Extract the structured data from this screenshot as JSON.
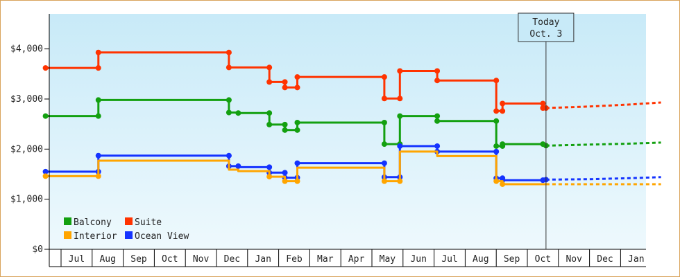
{
  "chart_data": {
    "type": "line",
    "title": "",
    "xlabel": "",
    "ylabel": "",
    "ylim": [
      0,
      4700
    ],
    "yticks": [
      {
        "value": 0,
        "label": "$0"
      },
      {
        "value": 1000,
        "label": "$1,000"
      },
      {
        "value": 2000,
        "label": "$2,000"
      },
      {
        "value": 3000,
        "label": "$3,000"
      },
      {
        "value": 4000,
        "label": "$4,000"
      }
    ],
    "xlim": [
      -1.3,
      18.8
    ],
    "months": [
      "Jul",
      "Aug",
      "Sep",
      "Oct",
      "Nov",
      "Dec",
      "Jan",
      "Feb",
      "Mar",
      "Apr",
      "May",
      "Jun",
      "Jul",
      "Aug",
      "Sep",
      "Oct",
      "Nov",
      "Dec",
      "Jan"
    ],
    "today": {
      "line1": "Today",
      "line2": "Oct. 3",
      "x": 15.1
    },
    "grid": false,
    "background": {
      "top": "#c8eaf8",
      "bottom": "#eef9fd"
    },
    "legend": {
      "position": "bottom-left"
    },
    "series": [
      {
        "name": "Suite",
        "color": "#ff3300",
        "points": [
          [
            -1.0,
            3620
          ],
          [
            0.7,
            3620
          ],
          [
            0.7,
            3930
          ],
          [
            4.9,
            3930
          ],
          [
            4.9,
            3630
          ],
          [
            6.2,
            3630
          ],
          [
            6.2,
            3340
          ],
          [
            6.7,
            3340
          ],
          [
            6.7,
            3230
          ],
          [
            7.1,
            3230
          ],
          [
            7.1,
            3440
          ],
          [
            9.9,
            3440
          ],
          [
            9.9,
            3010
          ],
          [
            10.4,
            3010
          ],
          [
            10.4,
            3560
          ],
          [
            11.6,
            3560
          ],
          [
            11.6,
            3370
          ],
          [
            13.5,
            3370
          ],
          [
            13.5,
            2760
          ],
          [
            13.7,
            2760
          ],
          [
            13.7,
            2910
          ],
          [
            15.0,
            2910
          ],
          [
            15.0,
            2820
          ],
          [
            15.1,
            2820
          ]
        ],
        "markers": [
          [
            -1.0,
            3620
          ],
          [
            0.7,
            3620
          ],
          [
            0.7,
            3930
          ],
          [
            4.9,
            3930
          ],
          [
            4.9,
            3630
          ],
          [
            6.2,
            3630
          ],
          [
            6.2,
            3340
          ],
          [
            6.7,
            3340
          ],
          [
            6.7,
            3230
          ],
          [
            7.1,
            3230
          ],
          [
            7.1,
            3440
          ],
          [
            9.9,
            3440
          ],
          [
            9.9,
            3010
          ],
          [
            10.4,
            3010
          ],
          [
            10.4,
            3560
          ],
          [
            11.6,
            3560
          ],
          [
            11.6,
            3370
          ],
          [
            13.5,
            3370
          ],
          [
            13.5,
            2760
          ],
          [
            13.7,
            2760
          ],
          [
            13.7,
            2910
          ],
          [
            15.0,
            2910
          ],
          [
            15.0,
            2820
          ],
          [
            15.1,
            2820
          ]
        ],
        "forecast": [
          [
            15.1,
            2820
          ],
          [
            16.5,
            2850
          ],
          [
            17.8,
            2890
          ],
          [
            18.8,
            2930
          ]
        ]
      },
      {
        "name": "Balcony",
        "color": "#13a010",
        "points": [
          [
            -1.0,
            2660
          ],
          [
            0.7,
            2660
          ],
          [
            0.7,
            2980
          ],
          [
            4.9,
            2980
          ],
          [
            4.9,
            2730
          ],
          [
            5.2,
            2730
          ],
          [
            5.2,
            2720
          ],
          [
            6.2,
            2720
          ],
          [
            6.2,
            2490
          ],
          [
            6.7,
            2490
          ],
          [
            6.7,
            2380
          ],
          [
            7.1,
            2380
          ],
          [
            7.1,
            2530
          ],
          [
            9.9,
            2530
          ],
          [
            9.9,
            2100
          ],
          [
            10.4,
            2100
          ],
          [
            10.4,
            2660
          ],
          [
            11.6,
            2660
          ],
          [
            11.6,
            2560
          ],
          [
            13.5,
            2560
          ],
          [
            13.5,
            2060
          ],
          [
            13.7,
            2060
          ],
          [
            13.7,
            2100
          ],
          [
            15.0,
            2100
          ],
          [
            15.0,
            2070
          ],
          [
            15.1,
            2070
          ]
        ],
        "markers": [
          [
            -1.0,
            2660
          ],
          [
            0.7,
            2660
          ],
          [
            0.7,
            2980
          ],
          [
            4.9,
            2980
          ],
          [
            4.9,
            2730
          ],
          [
            5.2,
            2720
          ],
          [
            6.2,
            2720
          ],
          [
            6.2,
            2490
          ],
          [
            6.7,
            2490
          ],
          [
            6.7,
            2380
          ],
          [
            7.1,
            2380
          ],
          [
            7.1,
            2530
          ],
          [
            9.9,
            2530
          ],
          [
            9.9,
            2100
          ],
          [
            10.4,
            2100
          ],
          [
            10.4,
            2660
          ],
          [
            11.6,
            2660
          ],
          [
            11.6,
            2560
          ],
          [
            13.5,
            2560
          ],
          [
            13.5,
            2060
          ],
          [
            13.7,
            2060
          ],
          [
            13.7,
            2100
          ],
          [
            15.0,
            2100
          ],
          [
            15.1,
            2070
          ]
        ],
        "forecast": [
          [
            15.1,
            2070
          ],
          [
            16.5,
            2090
          ],
          [
            17.8,
            2110
          ],
          [
            18.8,
            2130
          ]
        ]
      },
      {
        "name": "Ocean View",
        "color": "#1433ff",
        "points": [
          [
            -1.0,
            1550
          ],
          [
            0.7,
            1550
          ],
          [
            0.7,
            1870
          ],
          [
            4.9,
            1870
          ],
          [
            4.9,
            1660
          ],
          [
            5.2,
            1660
          ],
          [
            5.2,
            1640
          ],
          [
            6.2,
            1640
          ],
          [
            6.2,
            1530
          ],
          [
            6.7,
            1530
          ],
          [
            6.7,
            1430
          ],
          [
            7.1,
            1430
          ],
          [
            7.1,
            1720
          ],
          [
            9.9,
            1720
          ],
          [
            9.9,
            1440
          ],
          [
            10.4,
            1440
          ],
          [
            10.4,
            2060
          ],
          [
            11.6,
            2060
          ],
          [
            11.6,
            1950
          ],
          [
            13.5,
            1950
          ],
          [
            13.5,
            1420
          ],
          [
            13.7,
            1420
          ],
          [
            13.7,
            1380
          ],
          [
            15.0,
            1380
          ],
          [
            15.0,
            1390
          ],
          [
            15.1,
            1390
          ]
        ],
        "markers": [
          [
            -1.0,
            1550
          ],
          [
            0.7,
            1550
          ],
          [
            0.7,
            1870
          ],
          [
            4.9,
            1870
          ],
          [
            4.9,
            1660
          ],
          [
            5.2,
            1660
          ],
          [
            6.2,
            1640
          ],
          [
            6.2,
            1530
          ],
          [
            6.7,
            1530
          ],
          [
            6.7,
            1430
          ],
          [
            7.1,
            1430
          ],
          [
            7.1,
            1720
          ],
          [
            9.9,
            1720
          ],
          [
            9.9,
            1440
          ],
          [
            10.4,
            1440
          ],
          [
            10.4,
            2060
          ],
          [
            11.6,
            2060
          ],
          [
            11.6,
            1950
          ],
          [
            13.5,
            1950
          ],
          [
            13.5,
            1420
          ],
          [
            13.7,
            1420
          ],
          [
            13.7,
            1380
          ],
          [
            15.0,
            1380
          ],
          [
            15.1,
            1390
          ]
        ],
        "forecast": [
          [
            15.1,
            1390
          ],
          [
            16.5,
            1400
          ],
          [
            17.8,
            1420
          ],
          [
            18.8,
            1440
          ]
        ]
      },
      {
        "name": "Interior",
        "color": "#ffa500",
        "points": [
          [
            -1.0,
            1460
          ],
          [
            0.7,
            1460
          ],
          [
            0.7,
            1770
          ],
          [
            4.9,
            1770
          ],
          [
            4.9,
            1590
          ],
          [
            5.2,
            1590
          ],
          [
            5.2,
            1560
          ],
          [
            6.2,
            1560
          ],
          [
            6.2,
            1450
          ],
          [
            6.7,
            1450
          ],
          [
            6.7,
            1360
          ],
          [
            7.1,
            1360
          ],
          [
            7.1,
            1630
          ],
          [
            9.9,
            1630
          ],
          [
            9.9,
            1360
          ],
          [
            10.4,
            1360
          ],
          [
            10.4,
            1950
          ],
          [
            11.6,
            1950
          ],
          [
            11.6,
            1860
          ],
          [
            13.5,
            1860
          ],
          [
            13.5,
            1360
          ],
          [
            13.7,
            1360
          ],
          [
            13.7,
            1300
          ],
          [
            15.0,
            1300
          ],
          [
            15.1,
            1300
          ]
        ],
        "markers": [
          [
            -1.0,
            1460
          ],
          [
            0.7,
            1460
          ],
          [
            6.2,
            1450
          ],
          [
            6.7,
            1360
          ],
          [
            7.1,
            1360
          ],
          [
            9.9,
            1360
          ],
          [
            10.4,
            1360
          ],
          [
            13.5,
            1360
          ],
          [
            13.7,
            1300
          ]
        ],
        "forecast": [
          [
            15.1,
            1300
          ],
          [
            16.5,
            1300
          ],
          [
            17.8,
            1300
          ],
          [
            18.8,
            1300
          ]
        ]
      }
    ],
    "legend_items": [
      {
        "name": "Balcony",
        "color": "#13a010"
      },
      {
        "name": "Suite",
        "color": "#ff3300"
      },
      {
        "name": "Interior",
        "color": "#ffa500"
      },
      {
        "name": "Ocean View",
        "color": "#1433ff"
      }
    ]
  }
}
